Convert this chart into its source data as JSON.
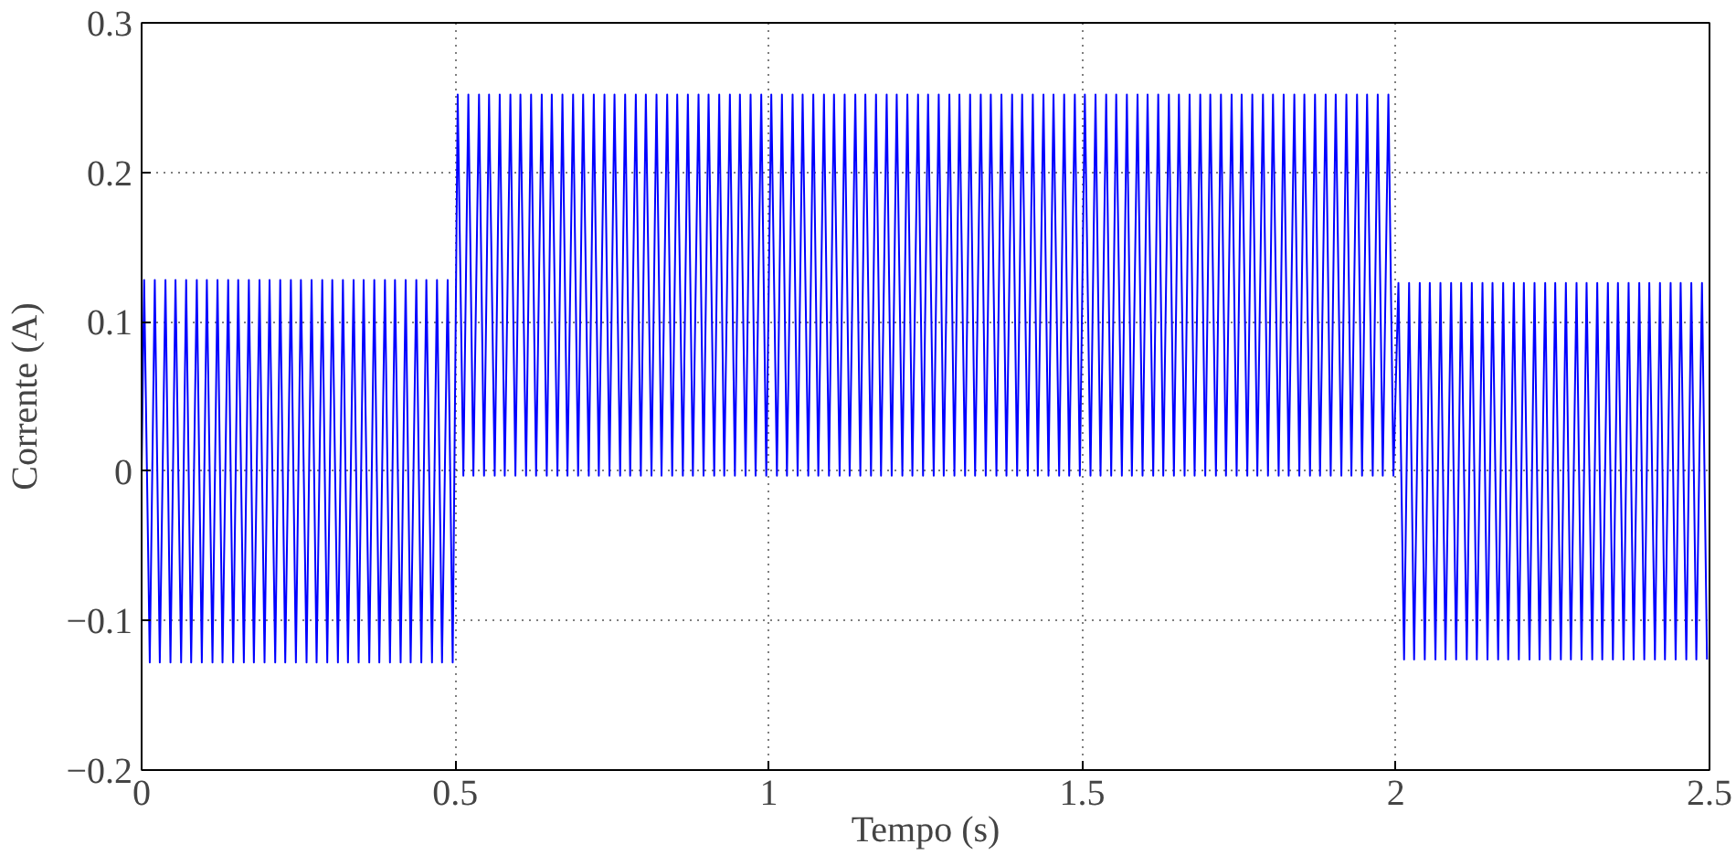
{
  "chart_data": {
    "type": "line",
    "xlabel": "Tempo (s)",
    "ylabel": "Corrente (A)",
    "xlim": [
      0,
      2.5
    ],
    "ylim": [
      -0.2,
      0.3
    ],
    "xticks": [
      0,
      0.5,
      1,
      1.5,
      2,
      2.5
    ],
    "yticks": [
      {
        "value": -0.2,
        "label": "−0.2"
      },
      {
        "value": -0.1,
        "label": "−0.1"
      },
      0,
      0.1,
      0.2,
      0.3
    ],
    "grid": true,
    "line_style": "solid",
    "series": [
      {
        "color": "#0000ff",
        "x": [
          0,
          0.004,
          0.013,
          0.021,
          0.029,
          0.038,
          0.046,
          0.054,
          0.063,
          0.071,
          0.079,
          0.088,
          0.096,
          0.104,
          0.113,
          0.121,
          0.129,
          0.138,
          0.146,
          0.154,
          0.163,
          0.171,
          0.179,
          0.188,
          0.196,
          0.204,
          0.213,
          0.221,
          0.229,
          0.238,
          0.246,
          0.254,
          0.263,
          0.271,
          0.279,
          0.288,
          0.296,
          0.304,
          0.313,
          0.321,
          0.329,
          0.338,
          0.346,
          0.354,
          0.363,
          0.371,
          0.379,
          0.388,
          0.396,
          0.404,
          0.413,
          0.421,
          0.429,
          0.438,
          0.446,
          0.454,
          0.463,
          0.471,
          0.479,
          0.488,
          0.496,
          0.504,
          0.513,
          0.521,
          0.529,
          0.538,
          0.546,
          0.554,
          0.563,
          0.571,
          0.579,
          0.588,
          0.596,
          0.604,
          0.613,
          0.621,
          0.629,
          0.638,
          0.646,
          0.654,
          0.663,
          0.671,
          0.679,
          0.688,
          0.696,
          0.704,
          0.713,
          0.721,
          0.729,
          0.738,
          0.746,
          0.754,
          0.763,
          0.771,
          0.779,
          0.788,
          0.796,
          0.804,
          0.813,
          0.821,
          0.829,
          0.838,
          0.846,
          0.854,
          0.863,
          0.871,
          0.879,
          0.888,
          0.896,
          0.904,
          0.913,
          0.921,
          0.929,
          0.938,
          0.946,
          0.954,
          0.963,
          0.971,
          0.979,
          0.988,
          0.996,
          1.004,
          1.013,
          1.021,
          1.029,
          1.038,
          1.046,
          1.054,
          1.063,
          1.071,
          1.079,
          1.088,
          1.096,
          1.104,
          1.113,
          1.121,
          1.129,
          1.138,
          1.146,
          1.154,
          1.163,
          1.171,
          1.179,
          1.188,
          1.196,
          1.204,
          1.213,
          1.221,
          1.229,
          1.238,
          1.246,
          1.254,
          1.263,
          1.271,
          1.279,
          1.288,
          1.296,
          1.304,
          1.313,
          1.321,
          1.329,
          1.338,
          1.346,
          1.354,
          1.363,
          1.371,
          1.379,
          1.388,
          1.396,
          1.404,
          1.413,
          1.421,
          1.429,
          1.438,
          1.446,
          1.454,
          1.463,
          1.471,
          1.479,
          1.488,
          1.496,
          1.504,
          1.513,
          1.521,
          1.529,
          1.538,
          1.546,
          1.554,
          1.563,
          1.571,
          1.579,
          1.588,
          1.596,
          1.604,
          1.613,
          1.621,
          1.629,
          1.638,
          1.646,
          1.654,
          1.663,
          1.671,
          1.679,
          1.688,
          1.696,
          1.704,
          1.713,
          1.721,
          1.729,
          1.738,
          1.746,
          1.754,
          1.763,
          1.771,
          1.779,
          1.788,
          1.796,
          1.804,
          1.813,
          1.821,
          1.829,
          1.838,
          1.846,
          1.854,
          1.863,
          1.871,
          1.879,
          1.888,
          1.896,
          1.904,
          1.913,
          1.921,
          1.929,
          1.938,
          1.946,
          1.954,
          1.963,
          1.971,
          1.979,
          1.988,
          1.996,
          2.004,
          2.013,
          2.021,
          2.029,
          2.038,
          2.046,
          2.054,
          2.063,
          2.071,
          2.079,
          2.088,
          2.096,
          2.104,
          2.113,
          2.121,
          2.129,
          2.138,
          2.146,
          2.154,
          2.163,
          2.171,
          2.179,
          2.188,
          2.196,
          2.204,
          2.213,
          2.221,
          2.229,
          2.238,
          2.246,
          2.254,
          2.263,
          2.271,
          2.279,
          2.288,
          2.296,
          2.304,
          2.313,
          2.321,
          2.329,
          2.338,
          2.346,
          2.354,
          2.363,
          2.371,
          2.379,
          2.388,
          2.396,
          2.404,
          2.413,
          2.421,
          2.429,
          2.438,
          2.446,
          2.454,
          2.463,
          2.471,
          2.479,
          2.488,
          2.496
        ],
        "values": [
          0,
          0.128,
          -0.128,
          0.128,
          -0.128,
          0.128,
          -0.128,
          0.128,
          -0.128,
          0.128,
          -0.128,
          0.128,
          -0.128,
          0.128,
          -0.128,
          0.128,
          -0.128,
          0.128,
          -0.128,
          0.128,
          -0.128,
          0.128,
          -0.128,
          0.128,
          -0.128,
          0.128,
          -0.128,
          0.128,
          -0.128,
          0.128,
          -0.128,
          0.128,
          -0.128,
          0.128,
          -0.128,
          0.128,
          -0.128,
          0.128,
          -0.128,
          0.128,
          -0.128,
          0.128,
          -0.128,
          0.128,
          -0.128,
          0.128,
          -0.128,
          0.128,
          -0.128,
          0.128,
          -0.128,
          0.128,
          -0.128,
          0.128,
          -0.128,
          0.128,
          -0.128,
          0.128,
          -0.128,
          0.128,
          -0.128,
          0.252,
          -0.003,
          0.252,
          -0.003,
          0.252,
          -0.003,
          0.252,
          -0.003,
          0.252,
          -0.003,
          0.252,
          -0.003,
          0.252,
          -0.003,
          0.252,
          -0.003,
          0.252,
          -0.003,
          0.252,
          -0.003,
          0.252,
          -0.003,
          0.252,
          -0.003,
          0.252,
          -0.003,
          0.252,
          -0.003,
          0.252,
          -0.003,
          0.252,
          -0.003,
          0.252,
          -0.003,
          0.252,
          -0.003,
          0.252,
          -0.003,
          0.252,
          -0.003,
          0.252,
          -0.003,
          0.252,
          -0.003,
          0.252,
          -0.003,
          0.252,
          -0.003,
          0.252,
          -0.003,
          0.252,
          -0.003,
          0.252,
          -0.003,
          0.252,
          -0.003,
          0.252,
          -0.003,
          0.252,
          -0.003,
          0.252,
          -0.003,
          0.252,
          -0.003,
          0.252,
          -0.003,
          0.252,
          -0.003,
          0.252,
          -0.003,
          0.252,
          -0.003,
          0.252,
          -0.003,
          0.252,
          -0.003,
          0.252,
          -0.003,
          0.252,
          -0.003,
          0.252,
          -0.003,
          0.252,
          -0.003,
          0.252,
          -0.003,
          0.252,
          -0.003,
          0.252,
          -0.003,
          0.252,
          -0.003,
          0.252,
          -0.003,
          0.252,
          -0.003,
          0.252,
          -0.003,
          0.252,
          -0.003,
          0.252,
          -0.003,
          0.252,
          -0.003,
          0.252,
          -0.003,
          0.252,
          -0.003,
          0.252,
          -0.003,
          0.252,
          -0.003,
          0.252,
          -0.003,
          0.252,
          -0.003,
          0.252,
          -0.003,
          0.252,
          -0.003,
          0.252,
          -0.003,
          0.252,
          -0.003,
          0.252,
          -0.003,
          0.252,
          -0.003,
          0.252,
          -0.003,
          0.252,
          -0.003,
          0.252,
          -0.003,
          0.252,
          -0.003,
          0.252,
          -0.003,
          0.252,
          -0.003,
          0.252,
          -0.003,
          0.252,
          -0.003,
          0.252,
          -0.003,
          0.252,
          -0.003,
          0.252,
          -0.003,
          0.252,
          -0.003,
          0.252,
          -0.003,
          0.252,
          -0.003,
          0.252,
          -0.003,
          0.252,
          -0.003,
          0.252,
          -0.003,
          0.252,
          -0.003,
          0.252,
          -0.003,
          0.252,
          -0.003,
          0.252,
          -0.003,
          0.252,
          -0.003,
          0.252,
          -0.003,
          0.252,
          -0.003,
          0.252,
          -0.003,
          0.252,
          -0.003,
          0.126,
          -0.126,
          0.126,
          -0.126,
          0.126,
          -0.126,
          0.126,
          -0.126,
          0.126,
          -0.126,
          0.126,
          -0.126,
          0.126,
          -0.126,
          0.126,
          -0.126,
          0.126,
          -0.126,
          0.126,
          -0.126,
          0.126,
          -0.126,
          0.126,
          -0.126,
          0.126,
          -0.126,
          0.126,
          -0.126,
          0.126,
          -0.126,
          0.126,
          -0.126,
          0.126,
          -0.126,
          0.126,
          -0.126,
          0.126,
          -0.126,
          0.126,
          -0.126,
          0.126,
          -0.126,
          0.126,
          -0.126,
          0.126,
          -0.126,
          0.126,
          -0.126,
          0.126,
          -0.126,
          0.126,
          -0.126,
          0.126,
          -0.126,
          0.126,
          -0.126,
          0.126,
          -0.126,
          0.126,
          -0.126
        ]
      }
    ]
  }
}
